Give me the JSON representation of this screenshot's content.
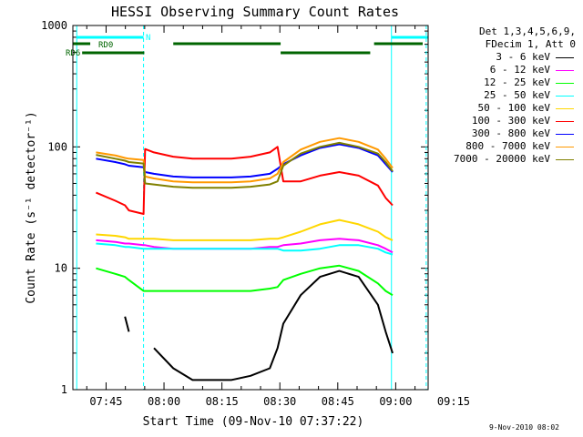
{
  "chart_data": {
    "type": "line",
    "title": "HESSI Observing Summary Count Rates",
    "xlabel": "Start Time (09-Nov-10 07:37:22)",
    "ylabel": "Count Rate (s⁻¹ detector⁻¹)",
    "yscale": "log",
    "ylim": [
      1,
      1000
    ],
    "xlim_minutes": [
      -1,
      91
    ],
    "x_tick_labels": [
      "07:45",
      "08:00",
      "08:15",
      "08:30",
      "08:45",
      "09:00",
      "09:15"
    ],
    "x_tick_minutes": [
      7.6,
      22.6,
      37.6,
      52.6,
      67.6,
      82.6,
      97.6
    ],
    "y_tick_labels": [
      "1",
      "10",
      "100",
      "1000"
    ],
    "y_tick_values": [
      1,
      10,
      100,
      1000
    ],
    "grid": false,
    "legend_placement": "right",
    "legend_header": [
      "Det 1,3,4,5,6,9,",
      "FDecim 1, Att 0"
    ],
    "date_stamp": "9-Nov-2010 08:02",
    "orbit_markers": {
      "labels": [
        "RD0",
        "RD6",
        "N"
      ],
      "night_start_minutes": [
        0,
        81.5
      ],
      "saa_dashed_minutes": [
        17.3,
        90.5
      ]
    },
    "x_sample_minutes": [
      0,
      5,
      10,
      12.5,
      13.5,
      17.3,
      17.7,
      20,
      25,
      30,
      40,
      45,
      50,
      52,
      53.5,
      58,
      63,
      68,
      73,
      78,
      80,
      81.8,
      81.9
    ],
    "series": [
      {
        "name": "3 - 6 keV",
        "color": "#000000",
        "values": [
          null,
          null,
          null,
          4.0,
          3.0,
          null,
          null,
          2.2,
          1.5,
          1.2,
          1.2,
          1.3,
          1.5,
          2.2,
          3.5,
          6.0,
          8.5,
          9.5,
          8.5,
          5.0,
          3.0,
          2.0,
          null
        ]
      },
      {
        "name": "6 - 12 keV",
        "color": "#ff00ff",
        "values": [
          null,
          17,
          16.5,
          16,
          16,
          15.5,
          15.5,
          15,
          14.5,
          14.5,
          14.5,
          14.5,
          15,
          15,
          15.5,
          16,
          17,
          17.5,
          17,
          15.5,
          14.5,
          13.5,
          null
        ]
      },
      {
        "name": "12 - 25 keV",
        "color": "#00ff00",
        "values": [
          null,
          10,
          9,
          8.5,
          8,
          6.5,
          6.5,
          6.5,
          6.5,
          6.5,
          6.5,
          6.5,
          6.8,
          7.0,
          8.0,
          9.0,
          10.0,
          10.5,
          9.5,
          7.5,
          6.5,
          6.0,
          null
        ]
      },
      {
        "name": "25 - 50 keV",
        "color": "#00ffff",
        "values": [
          null,
          16,
          15.5,
          15,
          15,
          14.5,
          14.5,
          14.5,
          14.5,
          14.5,
          14.5,
          14.5,
          14.5,
          14.5,
          14.0,
          14.0,
          14.5,
          15.5,
          15.5,
          14.5,
          13.5,
          13.0,
          null
        ]
      },
      {
        "name": "50 - 100 keV",
        "color": "#ffd700",
        "values": [
          null,
          19,
          18.5,
          18,
          17.5,
          17.5,
          17.5,
          17.5,
          17,
          17,
          17,
          17,
          17.5,
          17.5,
          18,
          20,
          23,
          25,
          23,
          20,
          18,
          17,
          null
        ]
      },
      {
        "name": "100 - 300 keV",
        "color": "#ff0000",
        "values": [
          null,
          42,
          36,
          33,
          30,
          28,
          96,
          90,
          83,
          80,
          80,
          83,
          90,
          100,
          52,
          52,
          58,
          62,
          58,
          48,
          38,
          33,
          null
        ]
      },
      {
        "name": "300 - 800 keV",
        "color": "#0000ff",
        "values": [
          null,
          80,
          75,
          72,
          70,
          68,
          62,
          60,
          57,
          56,
          56,
          57,
          60,
          66,
          72,
          85,
          98,
          105,
          98,
          85,
          72,
          62,
          null
        ]
      },
      {
        "name": "800 - 7000 keV",
        "color": "#ff9900",
        "values": [
          null,
          90,
          85,
          81,
          80,
          78,
          57,
          55,
          52,
          51,
          51,
          52,
          55,
          60,
          75,
          95,
          110,
          118,
          110,
          95,
          80,
          67,
          null
        ]
      },
      {
        "name": "7000 - 20000 keV",
        "color": "#808000",
        "values": [
          null,
          86,
          80,
          77,
          75,
          73,
          50,
          49,
          47,
          46,
          46,
          47,
          49,
          52,
          70,
          88,
          100,
          108,
          100,
          88,
          75,
          63,
          null
        ]
      }
    ]
  }
}
